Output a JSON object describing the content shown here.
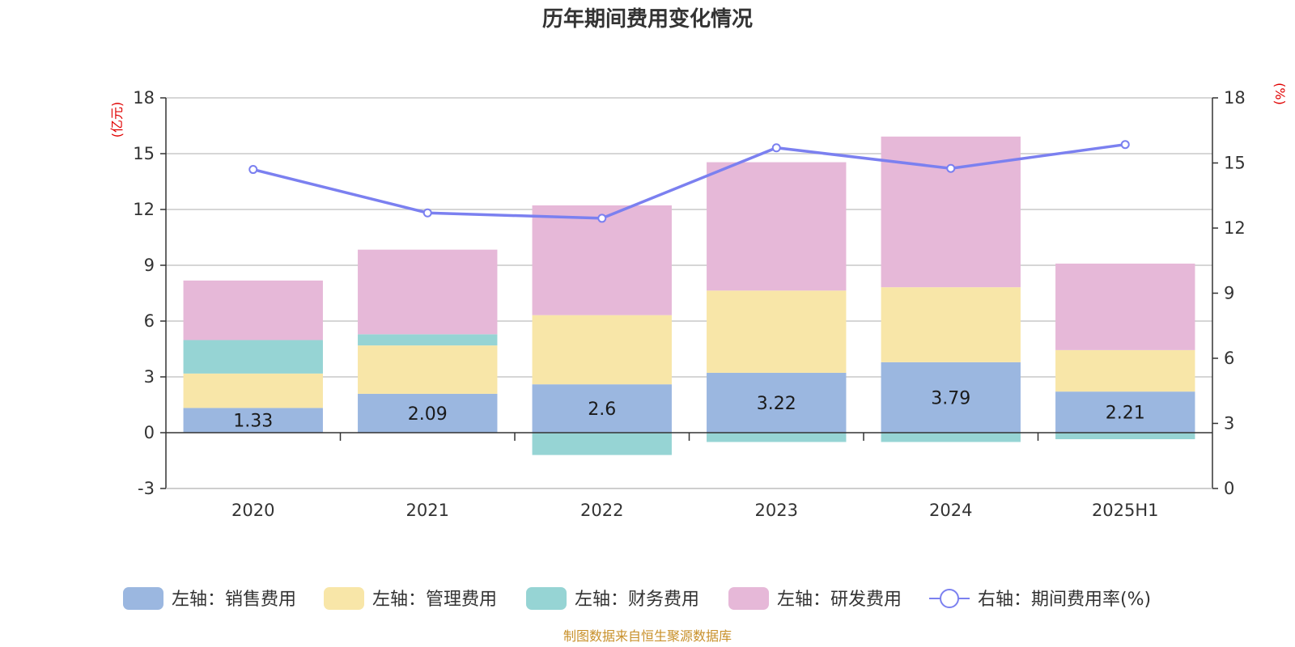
{
  "chart_data": {
    "type": "bar",
    "stacked": true,
    "title": "历年期间费用变化情况",
    "categories": [
      "2020",
      "2021",
      "2022",
      "2023",
      "2024",
      "2025H1"
    ],
    "left_axis": {
      "unit": "(亿元)",
      "ylim": [
        -3,
        18
      ],
      "ticks": [
        -3,
        0,
        3,
        6,
        9,
        12,
        15,
        18
      ]
    },
    "right_axis": {
      "unit": "(%)",
      "ylim": [
        0,
        18
      ],
      "ticks": [
        0,
        3,
        6,
        9,
        12,
        15,
        18
      ]
    },
    "series": [
      {
        "name": "左轴：销售费用",
        "type": "bar",
        "axis": "left",
        "color": "#9bb7e0",
        "values": [
          1.33,
          2.09,
          2.6,
          3.22,
          3.79,
          2.21
        ],
        "show_labels": true
      },
      {
        "name": "左轴：管理费用",
        "type": "bar",
        "axis": "left",
        "color": "#f8e6a8",
        "values": [
          1.85,
          2.6,
          3.72,
          4.42,
          4.03,
          2.23
        ]
      },
      {
        "name": "左轴：财务费用",
        "type": "bar",
        "axis": "left",
        "color": "#96d4d4",
        "values": [
          1.8,
          0.6,
          -1.2,
          -0.5,
          -0.5,
          -0.35
        ]
      },
      {
        "name": "左轴：研发费用",
        "type": "bar",
        "axis": "left",
        "color": "#e6b8d8",
        "values": [
          3.2,
          4.55,
          5.9,
          6.9,
          8.1,
          4.65
        ]
      },
      {
        "name": "右轴：期间费用率(%)",
        "type": "line",
        "axis": "right",
        "color": "#7b80f0",
        "values": [
          14.7,
          12.7,
          12.45,
          15.7,
          14.75,
          15.85
        ]
      }
    ],
    "grid": true,
    "legend_position": "bottom"
  },
  "source_note": "制图数据来自恒生聚源数据库"
}
